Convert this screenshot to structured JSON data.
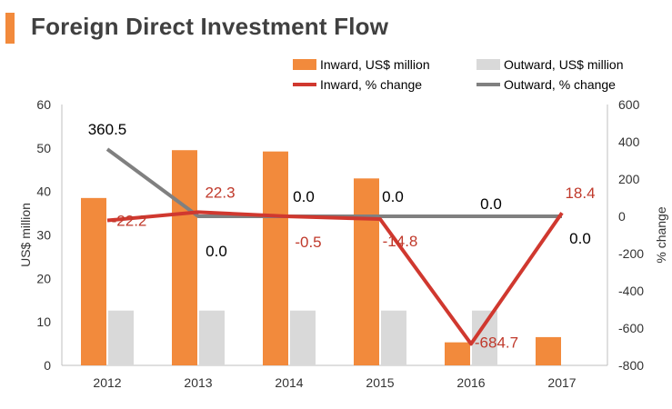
{
  "page_title": "Foreign Direct Investment Flow",
  "colors": {
    "inward_bar": "#f28a3c",
    "outward_bar": "#d9d9d9",
    "inward_line": "#d0382f",
    "outward_line": "#808080",
    "title_accent": "#f28a3c",
    "label_red": "#c0392b"
  },
  "chart_data": {
    "type": "bar",
    "combo": "bar + line (secondary axis)",
    "title": "Foreign Direct Investment Flow",
    "categories": [
      "2012",
      "2013",
      "2014",
      "2015",
      "2016",
      "2017"
    ],
    "ylabel": "US$ million",
    "y2label": "% change",
    "ylim": [
      0,
      60
    ],
    "yticks": [
      "0",
      "10",
      "20",
      "30",
      "40",
      "50",
      "60"
    ],
    "y2lim": [
      -800,
      600
    ],
    "y2ticks": [
      "-800",
      "-600",
      "-400",
      "-200",
      "0",
      "200",
      "400",
      "600"
    ],
    "grid": false,
    "legend_position": "top",
    "series": [
      {
        "name": "Inward, US$ million",
        "kind": "bar",
        "axis": "left",
        "values": [
          38.5,
          49.5,
          49.2,
          43.0,
          5.3,
          6.5
        ]
      },
      {
        "name": "Outward, US$ million",
        "kind": "bar",
        "axis": "left",
        "values": [
          12.6,
          12.6,
          12.6,
          12.6,
          12.6,
          null
        ]
      },
      {
        "name": "Inward, % change",
        "kind": "line",
        "axis": "right",
        "values": [
          -22.2,
          22.3,
          -0.5,
          -14.8,
          -684.7,
          18.4
        ],
        "labels": [
          "-22.2",
          "22.3",
          "-0.5",
          "-14.8",
          "-684.7",
          "18.4"
        ]
      },
      {
        "name": "Outward, % change",
        "kind": "line",
        "axis": "right",
        "values": [
          360.5,
          0.0,
          0.0,
          0.0,
          0.0,
          0.0
        ],
        "labels": [
          "360.5",
          "0.0",
          "0.0",
          "0.0",
          "0.0",
          "0.0"
        ]
      }
    ]
  }
}
